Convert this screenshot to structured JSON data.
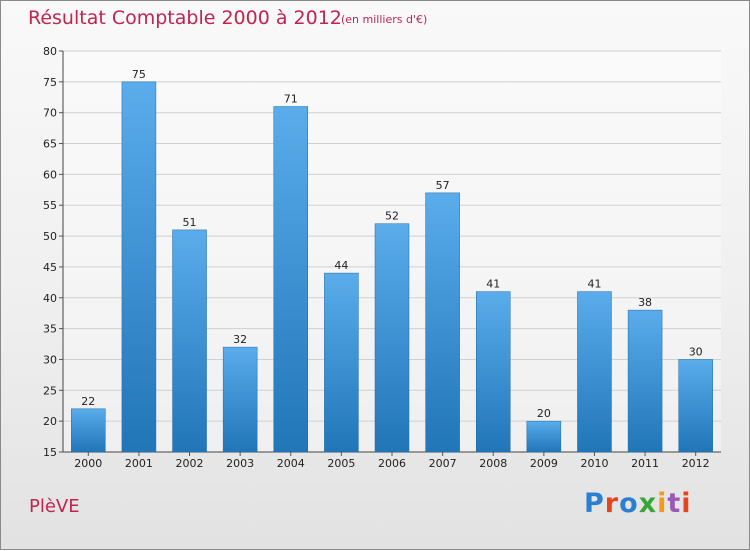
{
  "header": {
    "title": "Résultat Comptable 2000 à 2012",
    "subtitle": "(en milliers d'€)"
  },
  "footer": {
    "place": "PlèVE",
    "logo_letters": [
      "P",
      "r",
      "o",
      "x",
      "i",
      "t",
      "i"
    ],
    "logo_colors": [
      "#2a7fd1",
      "#e7431f",
      "#2a7fd1",
      "#3aa63a",
      "#f39a16",
      "#9b59b6",
      "#e7431f"
    ]
  },
  "colors": {
    "bar_top": "#5aaceb",
    "bar_bottom": "#2176b8",
    "title": "#c0244f"
  },
  "chart_data": {
    "type": "bar",
    "categories": [
      "2000",
      "2001",
      "2002",
      "2003",
      "2004",
      "2005",
      "2006",
      "2007",
      "2008",
      "2009",
      "2010",
      "2011",
      "2012"
    ],
    "values": [
      22,
      75,
      51,
      32,
      71,
      44,
      52,
      57,
      41,
      20,
      41,
      38,
      30
    ],
    "title": "Résultat Comptable 2000 à 2012",
    "subtitle": "(en milliers d'€)",
    "ylim": [
      15,
      80
    ],
    "yticks": [
      15,
      20,
      25,
      30,
      35,
      40,
      45,
      50,
      55,
      60,
      65,
      70,
      75,
      80
    ],
    "grid": true,
    "data_labels": true
  }
}
